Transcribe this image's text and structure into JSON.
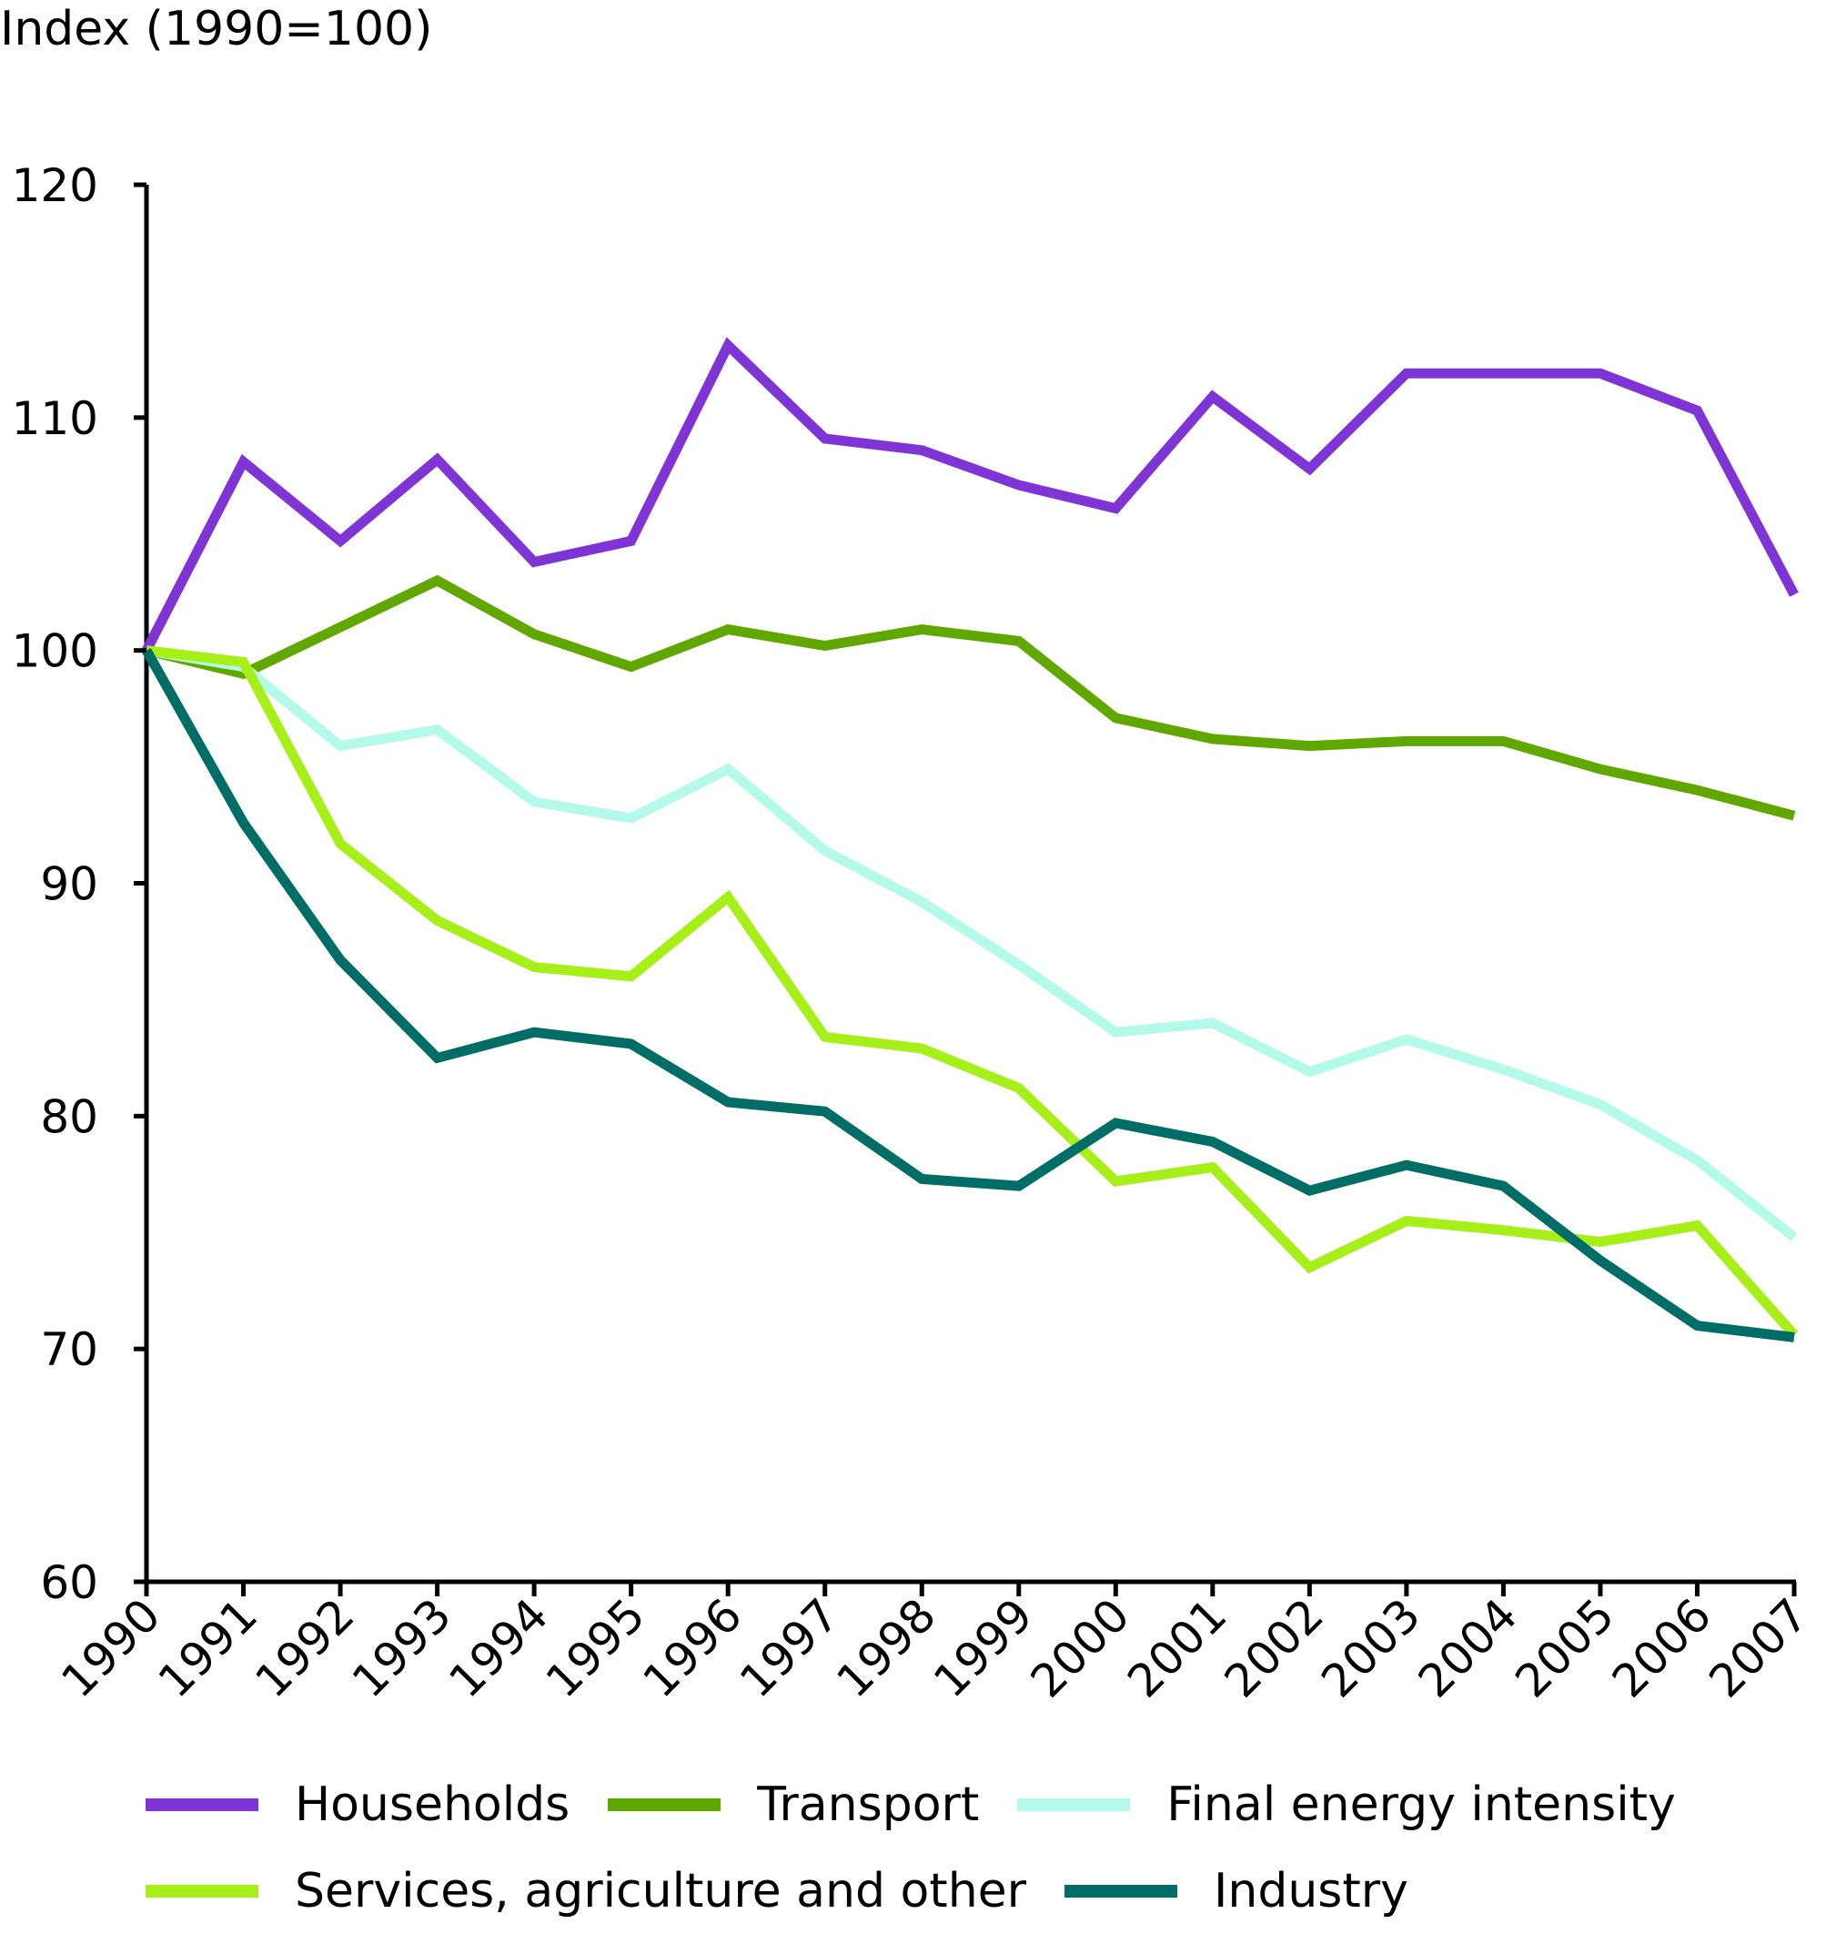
{
  "chart_data": {
    "type": "line",
    "title": "",
    "ylabel": "Index (1990=100)",
    "xlabel": "",
    "ylim": [
      60,
      120
    ],
    "yticks": [
      60,
      70,
      80,
      90,
      100,
      110,
      120
    ],
    "grid": false,
    "legend_position": "bottom",
    "x": [
      "1990",
      "1991",
      "1992",
      "1993",
      "1994",
      "1995",
      "1996",
      "1997",
      "1998",
      "1999",
      "2000",
      "2001",
      "2002",
      "2003",
      "2004",
      "2005",
      "2006",
      "2007"
    ],
    "series": [
      {
        "name": "Households",
        "color": "#7f35d6",
        "values": [
          100,
          108.1,
          104.7,
          108.2,
          103.8,
          104.7,
          113.1,
          109.1,
          108.6,
          107.1,
          106.1,
          110.9,
          107.8,
          111.9,
          111.9,
          111.9,
          110.3,
          102.4
        ]
      },
      {
        "name": "Transport",
        "color": "#60a800",
        "values": [
          100,
          99.0,
          101.0,
          103.0,
          100.7,
          99.3,
          100.9,
          100.2,
          100.9,
          100.4,
          97.1,
          96.2,
          95.9,
          96.1,
          96.1,
          94.9,
          94.0,
          92.9
        ]
      },
      {
        "name": "Final energy intensity",
        "color": "#b3fbe8",
        "values": [
          100,
          99.3,
          95.9,
          96.6,
          93.5,
          92.8,
          94.9,
          91.4,
          89.2,
          86.5,
          83.6,
          84.0,
          81.9,
          83.3,
          82.0,
          80.5,
          78.1,
          74.8
        ]
      },
      {
        "name": "Services, agriculture and other",
        "color": "#a6ef18",
        "values": [
          100,
          99.5,
          91.7,
          88.4,
          86.4,
          86.0,
          89.4,
          83.4,
          82.9,
          81.2,
          77.2,
          77.8,
          73.5,
          75.5,
          75.1,
          74.6,
          75.3,
          70.6
        ]
      },
      {
        "name": "Industry",
        "color": "#006e67",
        "values": [
          100,
          92.6,
          86.7,
          82.5,
          83.6,
          83.1,
          80.6,
          80.2,
          77.3,
          77.0,
          79.7,
          78.9,
          76.8,
          77.9,
          77.0,
          73.8,
          71.0,
          70.5
        ]
      }
    ]
  },
  "legend": {
    "row1": [
      0,
      1,
      2
    ],
    "row2": [
      3,
      4
    ]
  }
}
